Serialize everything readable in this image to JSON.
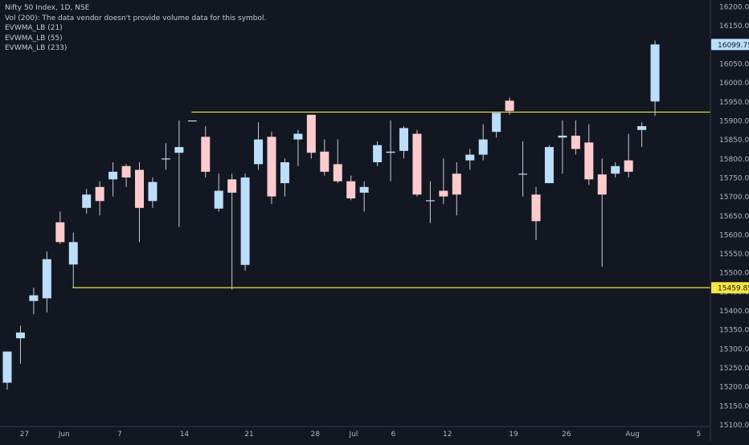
{
  "legend": {
    "title": "Nifty 50 Index, 1D, NSE",
    "lines": [
      "Vol (200): The data vendor doesn't provide volume data for this symbol.",
      "EVWMA_LB (21)",
      "EVWMA_LB (55)",
      "EVWMA_LB (233)"
    ]
  },
  "colors": {
    "background": "#131722",
    "up": "#bbdefb",
    "down": "#fccbcd",
    "wick": "#c9ccd3",
    "level_line": "#f5e642",
    "axis_text": "#b2b5be",
    "axis_border": "#363a45"
  },
  "chart_data": {
    "type": "candlestick",
    "symbol": "Nifty 50 Index",
    "interval": "1D",
    "exchange": "NSE",
    "ylim": [
      15060,
      16225
    ],
    "yticks": [
      15100,
      15150,
      15200,
      15250,
      15300,
      15350,
      15400,
      15450,
      15500,
      15550,
      15600,
      15650,
      15700,
      15750,
      15800,
      15850,
      15900,
      15950,
      16000,
      16050,
      16100,
      16150,
      16200
    ],
    "xticks": [
      "27",
      "Jun",
      "7",
      "14",
      "21",
      "28",
      "Jul",
      "6",
      "12",
      "19",
      "26",
      "Aug",
      "5"
    ],
    "xtick_bar_index": [
      1.3,
      4.3,
      8.5,
      13.4,
      18.3,
      23.3,
      26.2,
      29.2,
      33.3,
      38.3,
      42.3,
      47.3,
      52.3
    ],
    "price_labels": [
      {
        "text": "16099.75",
        "value": 16099.75,
        "color": "#bbdefb",
        "text_color": "#131722"
      },
      {
        "text": "15459.85",
        "value": 15459.85,
        "color": "#f5e642",
        "text_color": "#131722"
      }
    ],
    "levels": [
      {
        "value": 15922,
        "from_index": 14
      },
      {
        "value": 15460,
        "from_index": 5
      }
    ],
    "candles": [
      {
        "o": 15210,
        "h": 15285,
        "l": 15192,
        "c": 15292
      },
      {
        "o": 15327,
        "h": 15360,
        "l": 15260,
        "c": 15342
      },
      {
        "o": 15425,
        "h": 15460,
        "l": 15390,
        "c": 15440
      },
      {
        "o": 15432,
        "h": 15555,
        "l": 15395,
        "c": 15535
      },
      {
        "o": 15632,
        "h": 15660,
        "l": 15575,
        "c": 15580
      },
      {
        "o": 15521,
        "h": 15605,
        "l": 15460,
        "c": 15580
      },
      {
        "o": 15670,
        "h": 15720,
        "l": 15655,
        "c": 15705
      },
      {
        "o": 15725,
        "h": 15740,
        "l": 15650,
        "c": 15688
      },
      {
        "o": 15745,
        "h": 15790,
        "l": 15700,
        "c": 15765
      },
      {
        "o": 15780,
        "h": 15785,
        "l": 15725,
        "c": 15750
      },
      {
        "o": 15770,
        "h": 15790,
        "l": 15580,
        "c": 15670
      },
      {
        "o": 15688,
        "h": 15750,
        "l": 15670,
        "c": 15738
      },
      {
        "o": 15800,
        "h": 15840,
        "l": 15770,
        "c": 15800
      },
      {
        "o": 15815,
        "h": 15900,
        "l": 15620,
        "c": 15830
      },
      {
        "o": 15900,
        "h": 15900,
        "l": 15900,
        "c": 15900
      },
      {
        "o": 15857,
        "h": 15885,
        "l": 15750,
        "c": 15765
      },
      {
        "o": 15668,
        "h": 15760,
        "l": 15660,
        "c": 15715
      },
      {
        "o": 15745,
        "h": 15760,
        "l": 15455,
        "c": 15710
      },
      {
        "o": 15520,
        "h": 15760,
        "l": 15505,
        "c": 15750
      },
      {
        "o": 15785,
        "h": 15895,
        "l": 15770,
        "c": 15850
      },
      {
        "o": 15857,
        "h": 15870,
        "l": 15680,
        "c": 15700
      },
      {
        "o": 15735,
        "h": 15800,
        "l": 15700,
        "c": 15790
      },
      {
        "o": 15850,
        "h": 15875,
        "l": 15780,
        "c": 15865
      },
      {
        "o": 15915,
        "h": 15915,
        "l": 15800,
        "c": 15815
      },
      {
        "o": 15818,
        "h": 15850,
        "l": 15755,
        "c": 15765
      },
      {
        "o": 15785,
        "h": 15850,
        "l": 15735,
        "c": 15740
      },
      {
        "o": 15740,
        "h": 15755,
        "l": 15690,
        "c": 15695
      },
      {
        "o": 15710,
        "h": 15740,
        "l": 15660,
        "c": 15725
      },
      {
        "o": 15790,
        "h": 15845,
        "l": 15780,
        "c": 15835
      },
      {
        "o": 15815,
        "h": 15900,
        "l": 15740,
        "c": 15818
      },
      {
        "o": 15820,
        "h": 15885,
        "l": 15800,
        "c": 15880
      },
      {
        "o": 15865,
        "h": 15875,
        "l": 15700,
        "c": 15705
      },
      {
        "o": 15690,
        "h": 15740,
        "l": 15630,
        "c": 15690
      },
      {
        "o": 15715,
        "h": 15800,
        "l": 15680,
        "c": 15700
      },
      {
        "o": 15760,
        "h": 15790,
        "l": 15650,
        "c": 15705
      },
      {
        "o": 15795,
        "h": 15825,
        "l": 15770,
        "c": 15810
      },
      {
        "o": 15810,
        "h": 15890,
        "l": 15795,
        "c": 15850
      },
      {
        "o": 15870,
        "h": 15920,
        "l": 15855,
        "c": 15920
      },
      {
        "o": 15952,
        "h": 15960,
        "l": 15915,
        "c": 15925
      },
      {
        "o": 15760,
        "h": 15845,
        "l": 15700,
        "c": 15760
      },
      {
        "o": 15705,
        "h": 15725,
        "l": 15585,
        "c": 15635
      },
      {
        "o": 15735,
        "h": 15835,
        "l": 15745,
        "c": 15830
      },
      {
        "o": 15855,
        "h": 15900,
        "l": 15760,
        "c": 15860
      },
      {
        "o": 15860,
        "h": 15900,
        "l": 15810,
        "c": 15825
      },
      {
        "o": 15842,
        "h": 15890,
        "l": 15730,
        "c": 15745
      },
      {
        "o": 15758,
        "h": 15800,
        "l": 15515,
        "c": 15705
      },
      {
        "o": 15760,
        "h": 15790,
        "l": 15750,
        "c": 15780
      },
      {
        "o": 15795,
        "h": 15865,
        "l": 15750,
        "c": 15765
      },
      {
        "o": 15875,
        "h": 15895,
        "l": 15830,
        "c": 15885
      },
      {
        "o": 15950,
        "h": 16110,
        "l": 15912,
        "c": 16100
      }
    ]
  }
}
